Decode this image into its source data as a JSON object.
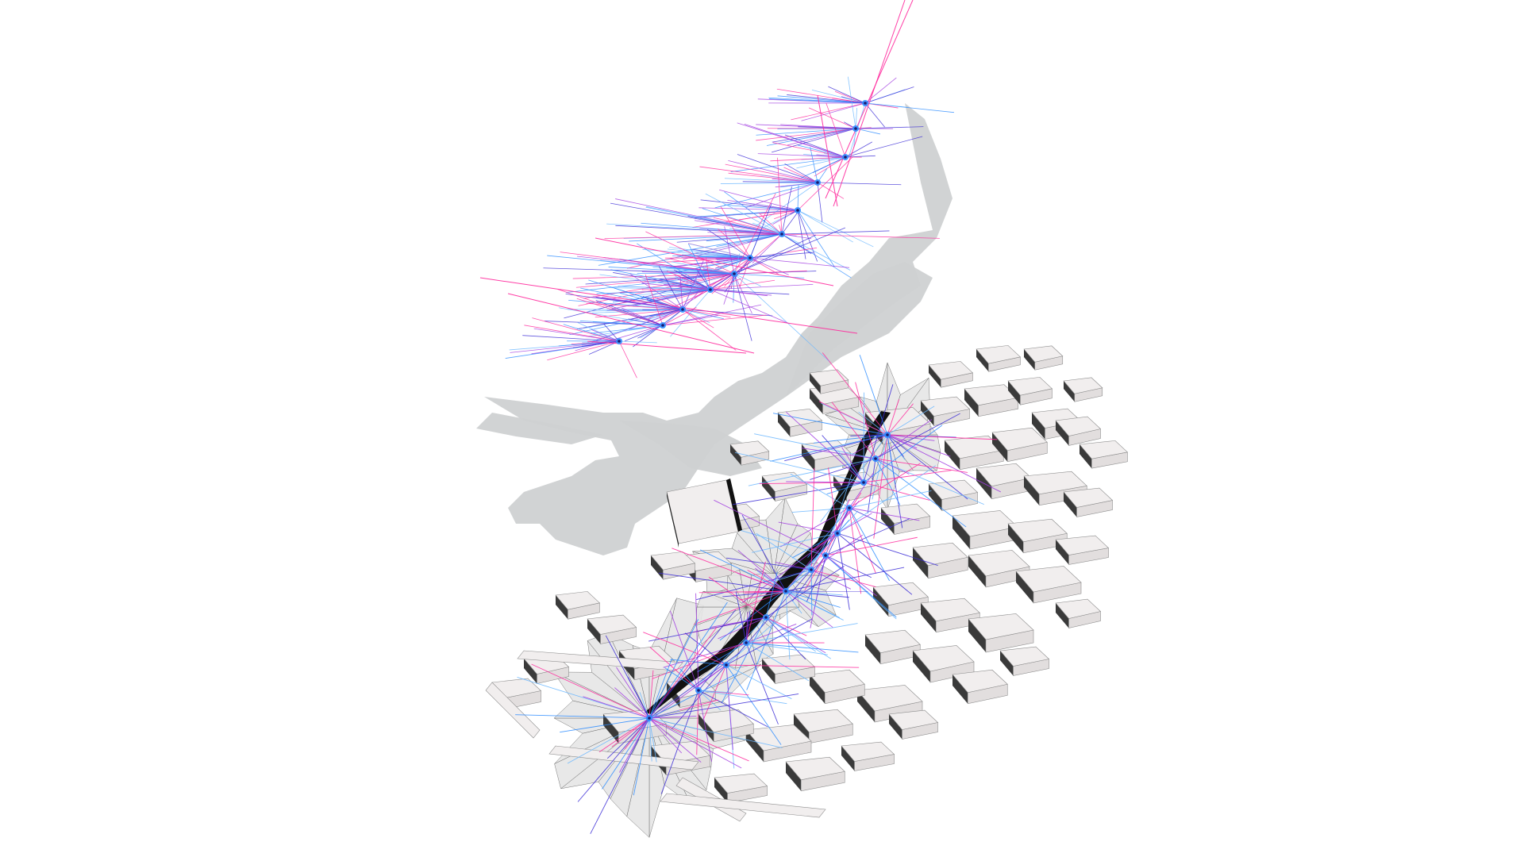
{
  "scene": {
    "type": "axonometric urban visibility diagram",
    "colors": {
      "background": "#ffffff",
      "shadow": "#cfd1d2",
      "building_top": "#f1eeee",
      "building_side": "#e2dede",
      "building_edge": "#8c8c8c",
      "void_dark": "#111111",
      "isovist_fill": "#e6e6e6",
      "isovist_edge": "#6a6a6a",
      "ray_colors": [
        "#ff2a9d",
        "#3a2bd6",
        "#6ab7ff",
        "#a03ae0",
        "#2d8cff"
      ]
    },
    "upper_cloud_nodes": 12,
    "ground_nodes": 13
  }
}
